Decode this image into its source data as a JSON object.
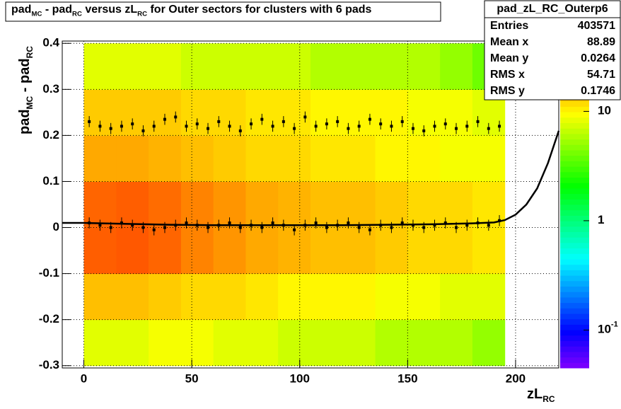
{
  "chart_data": {
    "type": "heatmap_profile",
    "title": [
      "pad",
      "MC",
      " - pad",
      "RC",
      " versus zL",
      "RC",
      " for Outer sectors for clusters with 6 pads"
    ],
    "x_label": [
      "zL",
      "RC"
    ],
    "y_label": [
      "pad",
      "MC",
      " - pad",
      "RC"
    ],
    "xlim": [
      -10,
      220
    ],
    "ylim": [
      -0.305,
      0.405
    ],
    "xticks": [
      0,
      50,
      100,
      150,
      200
    ],
    "yticks": [
      -0.3,
      -0.2,
      -0.1,
      0,
      0.1,
      0.2,
      0.3,
      0.4
    ],
    "grid": true,
    "zlim": [
      0.045,
      44
    ],
    "zlog": true,
    "zticks": [
      {
        "value": 0.1,
        "label": "10",
        "exponent": "-1"
      },
      {
        "value": 1,
        "label": "1"
      },
      {
        "value": 10,
        "label": "10"
      }
    ],
    "heatmap": {
      "x_edges": [
        0,
        15,
        30,
        45,
        60,
        75,
        90,
        105,
        120,
        135,
        150,
        165,
        180,
        195
      ],
      "y_edges": [
        -0.3,
        -0.2,
        -0.1,
        0,
        0.1,
        0.2,
        0.3,
        0.4
      ],
      "values": [
        [
          8,
          8,
          9,
          9,
          8,
          8,
          7,
          7,
          7,
          6,
          6,
          6,
          5
        ],
        [
          14,
          14,
          13,
          12,
          12,
          11,
          10,
          10,
          10,
          9,
          9,
          8,
          8
        ],
        [
          25,
          26,
          24,
          20,
          18,
          16,
          15,
          14,
          14,
          13,
          12,
          12,
          11
        ],
        [
          24,
          25,
          23,
          20,
          18,
          16,
          15,
          14,
          14,
          13,
          12,
          12,
          11
        ],
        [
          16,
          16,
          15,
          14,
          13,
          12,
          12,
          11,
          11,
          10,
          10,
          9,
          9
        ],
        [
          13,
          13,
          13,
          12,
          12,
          11,
          11,
          10,
          10,
          10,
          9,
          9,
          8
        ],
        [
          8,
          8,
          8,
          7,
          7,
          7,
          7,
          6,
          6,
          6,
          6,
          5,
          4
        ]
      ]
    },
    "profiles": [
      {
        "x": [
          2.5,
          7.5,
          12.5,
          17.5,
          22.5,
          27.5,
          32.5,
          37.5,
          42.5,
          47.5,
          52.5,
          57.5,
          62.5,
          67.5,
          72.5,
          77.5,
          82.5,
          87.5,
          92.5,
          97.5,
          102.5,
          107.5,
          112.5,
          117.5,
          122.5,
          127.5,
          132.5,
          137.5,
          142.5,
          147.5,
          152.5,
          157.5,
          162.5,
          167.5,
          172.5,
          177.5,
          182.5,
          187.5,
          192.5
        ],
        "values": [
          0.23,
          0.22,
          0.215,
          0.22,
          0.225,
          0.21,
          0.22,
          0.235,
          0.24,
          0.22,
          0.225,
          0.215,
          0.23,
          0.22,
          0.21,
          0.225,
          0.235,
          0.22,
          0.23,
          0.215,
          0.24,
          0.22,
          0.225,
          0.23,
          0.215,
          0.22,
          0.235,
          0.225,
          0.22,
          0.23,
          0.215,
          0.21,
          0.22,
          0.225,
          0.215,
          0.22,
          0.23,
          0.215,
          0.22
        ],
        "errors": [
          0.012,
          0.012,
          0.012,
          0.012,
          0.012,
          0.012,
          0.012,
          0.012,
          0.012,
          0.012,
          0.012,
          0.012,
          0.012,
          0.012,
          0.012,
          0.012,
          0.012,
          0.012,
          0.012,
          0.012,
          0.012,
          0.012,
          0.012,
          0.012,
          0.012,
          0.012,
          0.012,
          0.012,
          0.012,
          0.012,
          0.012,
          0.012,
          0.012,
          0.012,
          0.012,
          0.012,
          0.012,
          0.012,
          0.012
        ]
      },
      {
        "x": [
          2.5,
          7.5,
          12.5,
          17.5,
          22.5,
          27.5,
          32.5,
          37.5,
          42.5,
          47.5,
          52.5,
          57.5,
          62.5,
          67.5,
          72.5,
          77.5,
          82.5,
          87.5,
          92.5,
          97.5,
          102.5,
          107.5,
          112.5,
          117.5,
          122.5,
          127.5,
          132.5,
          137.5,
          142.5,
          147.5,
          152.5,
          157.5,
          162.5,
          167.5,
          172.5,
          177.5,
          182.5,
          187.5,
          192.5
        ],
        "values": [
          0.01,
          0.005,
          0.0,
          0.01,
          0.005,
          0.0,
          -0.005,
          0.0,
          0.005,
          0.01,
          0.005,
          0.0,
          0.005,
          0.01,
          0.0,
          0.005,
          0.0,
          0.01,
          0.005,
          -0.005,
          0.005,
          0.01,
          0.0,
          0.005,
          0.01,
          0.0,
          -0.005,
          0.005,
          0.0,
          0.01,
          0.005,
          0.0,
          0.005,
          0.01,
          0.0,
          0.005,
          0.01,
          0.005,
          0.015
        ],
        "errors": [
          0.012,
          0.012,
          0.012,
          0.012,
          0.012,
          0.012,
          0.012,
          0.012,
          0.012,
          0.012,
          0.012,
          0.012,
          0.012,
          0.012,
          0.012,
          0.012,
          0.012,
          0.012,
          0.012,
          0.012,
          0.012,
          0.012,
          0.012,
          0.012,
          0.012,
          0.012,
          0.012,
          0.012,
          0.012,
          0.012,
          0.012,
          0.012,
          0.012,
          0.012,
          0.012,
          0.012,
          0.012,
          0.012,
          0.012
        ]
      }
    ],
    "fit": {
      "x": [
        -10,
        0,
        20,
        40,
        60,
        80,
        100,
        120,
        140,
        160,
        180,
        190,
        195,
        200,
        205,
        210,
        215,
        220
      ],
      "values": [
        0.01,
        0.01,
        0.008,
        0.006,
        0.005,
        0.005,
        0.005,
        0.005,
        0.006,
        0.007,
        0.009,
        0.011,
        0.016,
        0.028,
        0.05,
        0.085,
        0.14,
        0.21
      ]
    },
    "stats": {
      "title": "pad_zL_RC_Outerp6",
      "rows": [
        [
          "Entries",
          403571
        ],
        [
          "Mean x",
          88.89
        ],
        [
          "Mean y",
          0.0264
        ],
        [
          "RMS x",
          54.71
        ],
        [
          "RMS y",
          0.1746
        ]
      ]
    }
  }
}
